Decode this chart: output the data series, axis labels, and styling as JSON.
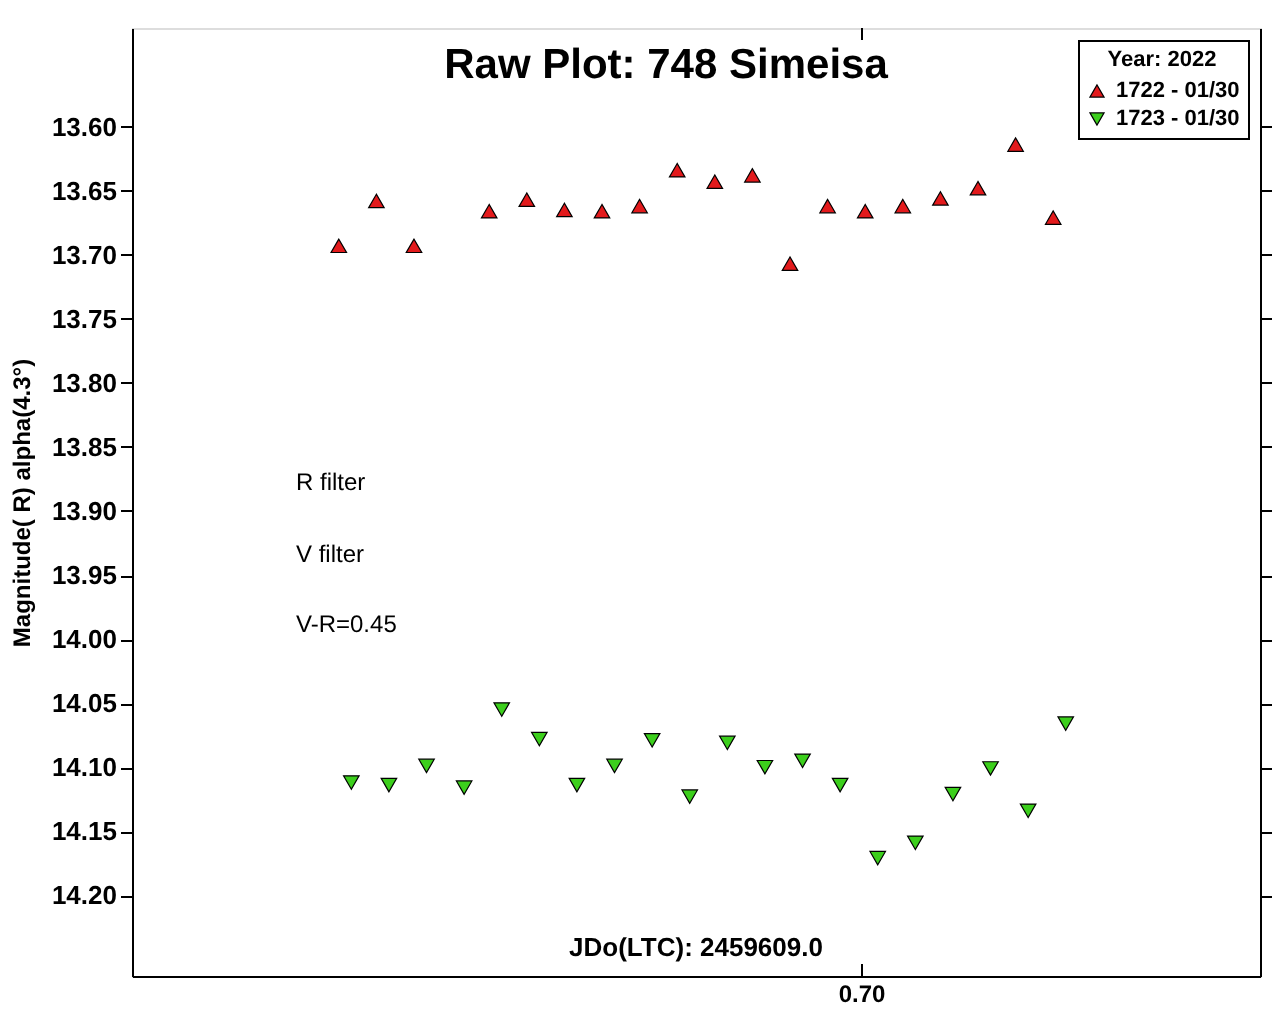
{
  "chart_data": {
    "type": "scatter",
    "title": "Raw Plot: 748 Simeisa",
    "ylabel": "Magnitude( R) alpha(4.3°)",
    "legend_title": "Year: 2022",
    "legend": "top right",
    "marker": "triangle",
    "categories": [
      null,
      null,
      null,
      null,
      null,
      null,
      null,
      null,
      null,
      null,
      null,
      null,
      null,
      null,
      null,
      null,
      null,
      null,
      null,
      null,
      null,
      null,
      null,
      null,
      null,
      null,
      null,
      null,
      null,
      null,
      null,
      null,
      null,
      null,
      null,
      null,
      null,
      null,
      null,
      null,
      null,
      null,
      null,
      null,
      null,
      null,
      null,
      null,
      null,
      null,
      null,
      null,
      null,
      null,
      null,
      null,
      null,
      null,
      null,
      null,
      null,
      null,
      null,
      null,
      null,
      null,
      null,
      null,
      null,
      null,
      null,
      null,
      null,
      null,
      null,
      null,
      null,
      null,
      null,
      null,
      null,
      null,
      null,
      null,
      null,
      null,
      null,
      null,
      null,
      null
    ],
    "ylim": [
      14.263,
      13.523
    ],
    "yticks": [
      {
        "value": 13.6,
        "label": "13.60"
      },
      {
        "value": 13.65,
        "label": "13.65"
      },
      {
        "value": 13.7,
        "label": "13.70"
      },
      {
        "value": 13.75,
        "label": "13.75"
      },
      {
        "value": 13.8,
        "label": "13.80"
      },
      {
        "value": 13.85,
        "label": "13.85"
      },
      {
        "value": 13.9,
        "label": "13.90"
      },
      {
        "value": 13.95,
        "label": "13.95"
      },
      {
        "value": 14.0,
        "label": "14.00"
      },
      {
        "value": 14.05,
        "label": "14.05"
      },
      {
        "value": 14.1,
        "label": "14.10"
      },
      {
        "value": 14.15,
        "label": "14.15"
      },
      {
        "value": 14.2,
        "label": "14.20"
      }
    ],
    "grid": false,
    "annotations": [
      "R filter",
      "V filter",
      "V-R=0.45",
      "JDo(LTC): 2459609.0",
      "0.70"
    ],
    "series": [
      {
        "name": "1722 - 01/30",
        "color": "#e31a1c",
        "values": [
          null,
          null,
          null,
          null,
          null,
          null,
          null,
          null,
          null,
          null,
          null,
          null,
          null,
          null,
          null,
          null,
          13.693,
          null,
          null,
          13.658,
          null,
          null,
          13.693,
          null,
          null,
          null,
          null,
          null,
          13.666,
          null,
          null,
          13.657,
          null,
          null,
          13.665,
          null,
          null,
          13.666,
          null,
          null,
          13.662,
          null,
          null,
          13.634,
          null,
          null,
          13.643,
          null,
          null,
          13.638,
          null,
          null,
          13.707,
          null,
          null,
          13.662,
          null,
          null,
          13.666,
          null,
          null,
          13.662,
          null,
          null,
          13.656,
          null,
          null,
          13.648,
          null,
          null,
          13.614,
          null,
          null,
          13.671,
          null,
          null,
          null,
          null,
          null,
          null,
          null,
          null,
          null,
          null,
          null,
          null,
          null,
          null,
          null,
          null
        ]
      },
      {
        "name": "1723 - 01/30",
        "color": "#3ccf1c",
        "values": [
          null,
          null,
          null,
          null,
          null,
          null,
          null,
          null,
          null,
          null,
          null,
          null,
          null,
          null,
          null,
          null,
          null,
          14.112,
          null,
          null,
          14.114,
          null,
          null,
          14.099,
          null,
          null,
          14.116,
          null,
          null,
          14.055,
          null,
          null,
          14.078,
          null,
          null,
          14.114,
          null,
          null,
          14.099,
          null,
          null,
          14.079,
          null,
          null,
          14.123,
          null,
          null,
          14.081,
          null,
          null,
          14.1,
          null,
          null,
          14.095,
          null,
          null,
          14.114,
          null,
          null,
          14.171,
          null,
          null,
          14.159,
          null,
          null,
          14.121,
          null,
          null,
          14.101,
          null,
          null,
          14.134,
          null,
          null,
          14.066,
          null,
          null,
          null,
          null,
          null,
          null,
          null,
          null,
          null,
          null,
          null,
          null,
          null,
          null,
          null
        ]
      }
    ]
  }
}
